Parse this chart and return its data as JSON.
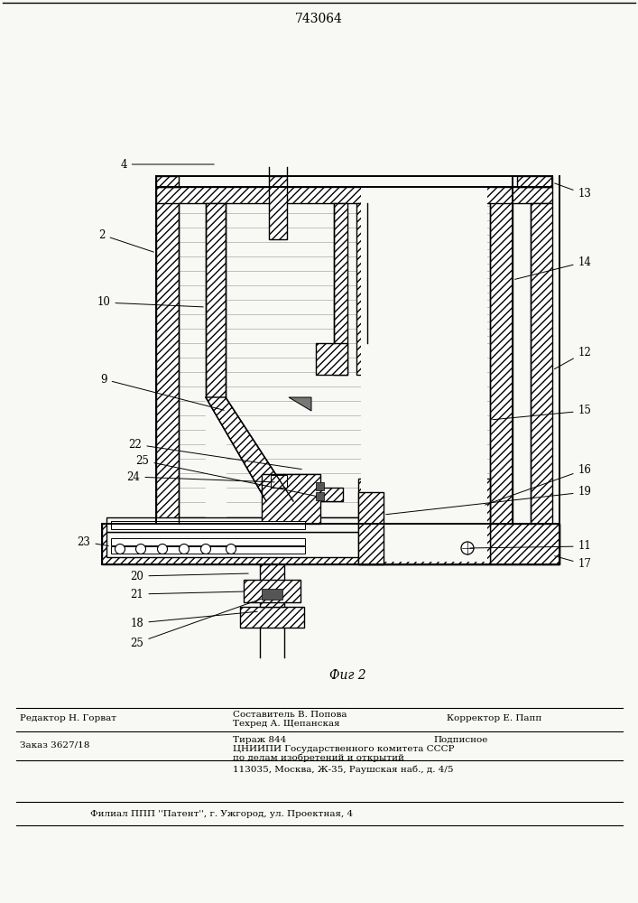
{
  "patent_number": "743064",
  "fig_label": "Фиг 2",
  "background_color": "#f8f8f5",
  "patent_number_fontsize": 10,
  "label_fontsize": 8.5,
  "editor_line1": "Редактор Н. Горват",
  "editor_line2": "Составитель В. Попова",
  "editor_line3": "Техред А. Щепанская",
  "editor_line4": "Корректор Е. Папп",
  "order_line": "Заказ 3627/18",
  "tirazh_line": "Тираж 844",
  "podpisnoe_line": "Подписное",
  "tsnipi_line1": "ЦНИИПИ Государственного комитета СССР",
  "tsnipi_line2": "по делам изобретений и открытий",
  "tsnipi_line3": "113035, Москва, Ж-35, Раушская наб., д. 4/5",
  "filial_line": "Филиал ППП ''Патент'', г. Ужгород, ул. Проектная, 4"
}
